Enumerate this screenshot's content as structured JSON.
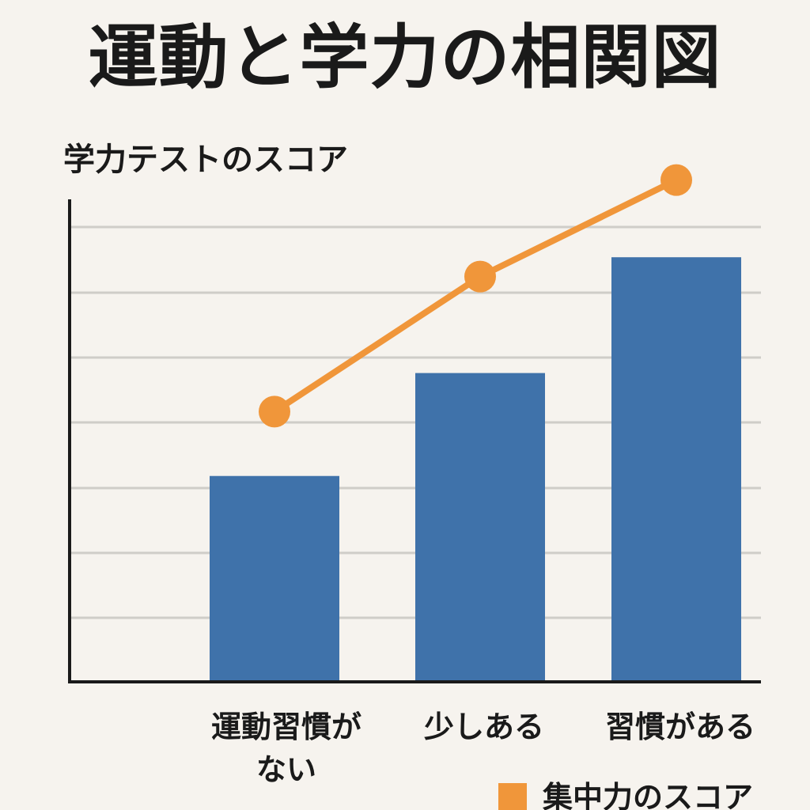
{
  "chart_data": {
    "type": "bar",
    "title": "運動と学力の相関図",
    "ylabel": "学力テストのスコア",
    "xlabel": "",
    "categories": [
      "運動習慣がない",
      "少しある",
      "習慣がある"
    ],
    "category_lines": [
      [
        "運動習慣が",
        "ない"
      ],
      [
        "少しある"
      ],
      [
        "習慣がある"
      ]
    ],
    "series": [
      {
        "type": "bar",
        "values": [
          32,
          48,
          66
        ],
        "color": "#3f72aa"
      },
      {
        "name": "集中力のスコア",
        "type": "line",
        "values": [
          42,
          63,
          78
        ],
        "color": "#f0963a"
      }
    ],
    "ylim": [
      0,
      75
    ],
    "grid": true,
    "legend": "bottom-right",
    "yticks_shown": false
  }
}
